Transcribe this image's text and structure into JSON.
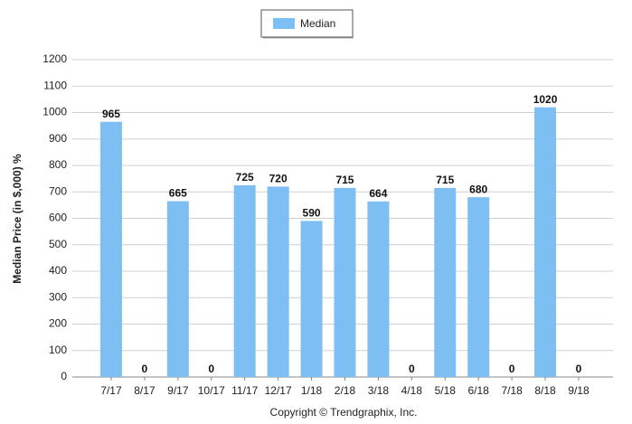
{
  "chart_data": {
    "type": "bar",
    "y_axis_label": "Median Price (in $,000) %",
    "footer": "Copyright © Trendgraphix, Inc.",
    "categories": [
      "7/17",
      "8/17",
      "9/17",
      "10/17",
      "11/17",
      "12/17",
      "1/18",
      "2/18",
      "3/18",
      "4/18",
      "5/18",
      "6/18",
      "7/18",
      "8/18",
      "9/18"
    ],
    "series": [
      {
        "name": "Median",
        "color": "#7dbff3",
        "values": [
          965,
          0,
          665,
          0,
          725,
          720,
          590,
          715,
          664,
          0,
          715,
          680,
          0,
          1020,
          0
        ]
      }
    ],
    "ylim": [
      0,
      1200
    ],
    "yticks": [
      0,
      100,
      200,
      300,
      400,
      500,
      600,
      700,
      800,
      900,
      1000,
      1100,
      1200
    ],
    "grid": true,
    "legend": "top"
  }
}
